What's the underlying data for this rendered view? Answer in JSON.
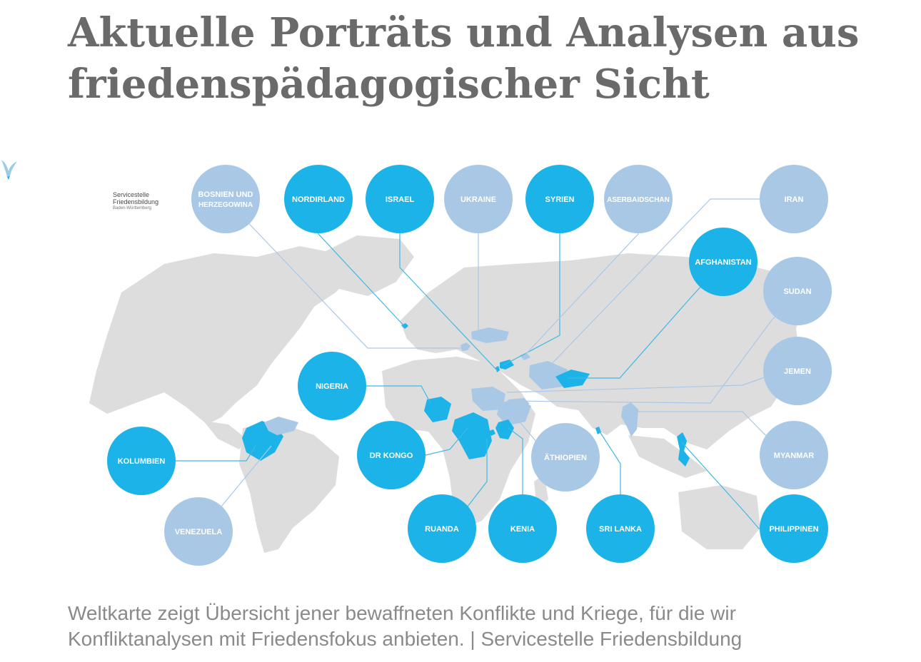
{
  "title": {
    "line1": "Aktuelle Porträts und Analysen aus",
    "line2": "friedenspädagogischer Sicht"
  },
  "logo": {
    "line1": "Servicestelle",
    "line2": "Friedensbildung",
    "line3": "Baden-Württemberg",
    "icon": "dove-icon"
  },
  "colors": {
    "active": "#1cb4e8",
    "inactive": "#a9c8e6",
    "land": "#dddddd",
    "line": "#3fb8e4",
    "title": "#6a6a6a",
    "caption": "#8a8a8a"
  },
  "countries": [
    {
      "id": "bosnien",
      "label_line1": "BOSNIEN UND",
      "label_line2": "HERZEGOWINA",
      "status": "inactive"
    },
    {
      "id": "nordirland",
      "label_line1": "NORDIRLAND",
      "label_line2": "",
      "status": "active"
    },
    {
      "id": "israel",
      "label_line1": "ISRAEL",
      "label_line2": "",
      "status": "active"
    },
    {
      "id": "ukraine",
      "label_line1": "UKRAINE",
      "label_line2": "",
      "status": "inactive"
    },
    {
      "id": "syrien",
      "label_line1": "SYRIEN",
      "label_line2": "",
      "status": "active"
    },
    {
      "id": "aserbaidschan",
      "label_line1": "ASERBAIDSCHAN",
      "label_line2": "",
      "status": "inactive"
    },
    {
      "id": "iran",
      "label_line1": "IRAN",
      "label_line2": "",
      "status": "inactive"
    },
    {
      "id": "afghanistan",
      "label_line1": "AFGHANISTAN",
      "label_line2": "",
      "status": "active"
    },
    {
      "id": "sudan",
      "label_line1": "SUDAN",
      "label_line2": "",
      "status": "inactive"
    },
    {
      "id": "jemen",
      "label_line1": "JEMEN",
      "label_line2": "",
      "status": "inactive"
    },
    {
      "id": "nigeria",
      "label_line1": "NIGERIA",
      "label_line2": "",
      "status": "active"
    },
    {
      "id": "kolumbien",
      "label_line1": "KOLUMBIEN",
      "label_line2": "",
      "status": "active"
    },
    {
      "id": "drkongo",
      "label_line1": "DR KONGO",
      "label_line2": "",
      "status": "active"
    },
    {
      "id": "aethiopien",
      "label_line1": "ÄTHIOPIEN",
      "label_line2": "",
      "status": "inactive"
    },
    {
      "id": "myanmar",
      "label_line1": "MYANMAR",
      "label_line2": "",
      "status": "inactive"
    },
    {
      "id": "venezuela",
      "label_line1": "VENEZUELA",
      "label_line2": "",
      "status": "inactive"
    },
    {
      "id": "ruanda",
      "label_line1": "RUANDA",
      "label_line2": "",
      "status": "active"
    },
    {
      "id": "kenia",
      "label_line1": "KENIA",
      "label_line2": "",
      "status": "active"
    },
    {
      "id": "srilanka",
      "label_line1": "SRI LANKA",
      "label_line2": "",
      "status": "active"
    },
    {
      "id": "philippinen",
      "label_line1": "PHILIPPINEN",
      "label_line2": "",
      "status": "active"
    }
  ],
  "caption": {
    "line1": "Weltkarte zeigt Übersicht jener bewaffneten Konflikte und Kriege, für die wir",
    "line2": "Konfliktanalysen mit Friedensfokus anbieten. | Servicestelle Friedensbildung"
  }
}
